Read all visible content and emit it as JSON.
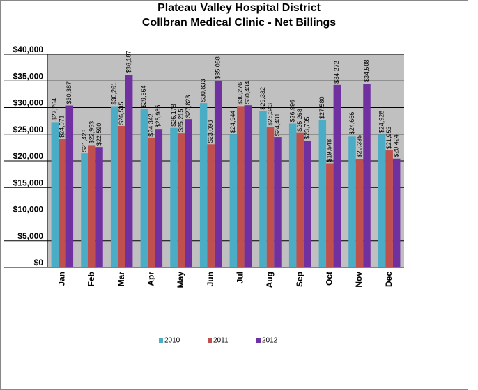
{
  "chart_data": {
    "type": "bar",
    "title": "Plateau Valley Hospital District",
    "subtitle": "Collbran Medical Clinic - Net Billings",
    "categories": [
      "Jan",
      "Feb",
      "Mar",
      "Apr",
      "May",
      "Jun",
      "Jul",
      "Aug",
      "Sep",
      "Oct",
      "Nov",
      "Dec"
    ],
    "series": [
      {
        "name": "2010",
        "color": "#4bacc6",
        "values": [
          27264,
          21423,
          30261,
          29664,
          26178,
          30833,
          24944,
          29332,
          26996,
          27580,
          24666,
          24928
        ],
        "value_labels": [
          "$27,264",
          "$21,423",
          "$30,261",
          "$29,664",
          "$26,178",
          "$30,833",
          "$24,944",
          "$29,332",
          "$26,996",
          "$27,580",
          "$24,666",
          "$24,928"
        ]
      },
      {
        "name": "2011",
        "color": "#c0504d",
        "values": [
          24071,
          22953,
          26535,
          24342,
          25215,
          23098,
          30276,
          26343,
          25268,
          19548,
          20335,
          21953
        ],
        "value_labels": [
          "$24,071",
          "$22,953",
          "$26,535",
          "$24,342",
          "$25,215",
          "$23,098",
          "$30,276",
          "$26,343",
          "$25,268",
          "$19,548",
          "$20,335",
          "$21,953"
        ]
      },
      {
        "name": "2012",
        "color": "#7030a0",
        "values": [
          30387,
          22590,
          36187,
          25985,
          27823,
          35058,
          30434,
          24431,
          23795,
          34272,
          34508,
          20424
        ],
        "value_labels": [
          "$30,387",
          "$22,590",
          "$36,187",
          "$25,985",
          "$27,823",
          "$35,058",
          "$30,434",
          "$24,431",
          "$23,795",
          "$34,272",
          "$34,508",
          "$20,424"
        ]
      }
    ],
    "ylim": [
      0,
      40000
    ],
    "yticks": [
      {
        "value": 0,
        "label": "$0"
      },
      {
        "value": 5000,
        "label": "$5,000"
      },
      {
        "value": 10000,
        "label": "$10,000"
      },
      {
        "value": 15000,
        "label": "$15,000"
      },
      {
        "value": 20000,
        "label": "$20,000"
      },
      {
        "value": 25000,
        "label": "$25,000"
      },
      {
        "value": 30000,
        "label": "$30,000"
      },
      {
        "value": 35000,
        "label": "$35,000"
      },
      {
        "value": 40000,
        "label": "$40,000"
      }
    ],
    "grid": true
  }
}
